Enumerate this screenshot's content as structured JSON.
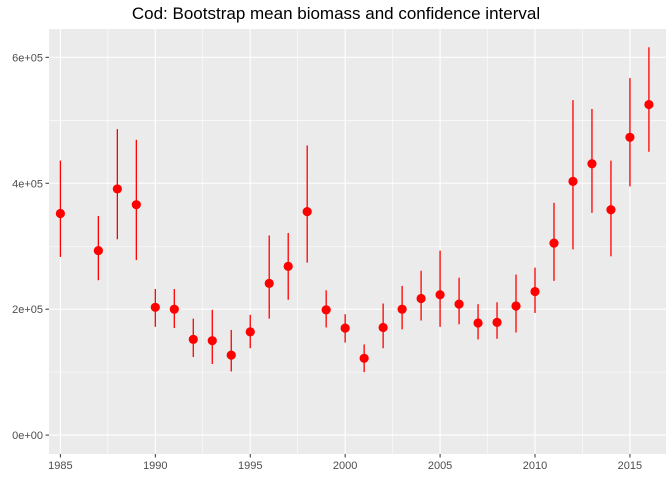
{
  "chart_data": {
    "type": "scatter",
    "title": "Cod: Bootstrap mean biomass and confidence interval",
    "xlabel": "",
    "ylabel": "",
    "xlim": [
      1984.4,
      2016.9
    ],
    "ylim": [
      -30000,
      645000
    ],
    "x_ticks": [
      1985,
      1990,
      1995,
      2000,
      2005,
      2010,
      2015
    ],
    "x_tick_labels": [
      "1985",
      "1990",
      "1995",
      "2000",
      "2005",
      "2010",
      "2015"
    ],
    "y_ticks": [
      0,
      200000,
      400000,
      600000
    ],
    "y_tick_labels": [
      "0e+00",
      "2e+05",
      "4e+05",
      "6e+05"
    ],
    "grid": true,
    "background": "#ebebeb",
    "gridline_color": "#ffffff",
    "point_color": "#ff0000",
    "series": [
      {
        "x": [
          1985,
          1987,
          1988,
          1989,
          1990,
          1991,
          1992,
          1993,
          1994,
          1995,
          1996,
          1997,
          1998,
          1999,
          2000,
          2001,
          2002,
          2003,
          2004,
          2005,
          2006,
          2007,
          2008,
          2009,
          2010,
          2011,
          2012,
          2013,
          2014,
          2015,
          2016
        ],
        "y": [
          352000,
          293000,
          391000,
          366000,
          203000,
          200000,
          152000,
          150000,
          127000,
          164000,
          241000,
          268000,
          355000,
          199000,
          170000,
          122000,
          171000,
          200000,
          217000,
          223000,
          208000,
          178000,
          179000,
          205000,
          228000,
          305000,
          403000,
          431000,
          358000,
          473000,
          525000
        ],
        "lower": [
          283000,
          246000,
          311000,
          278000,
          172000,
          170000,
          124000,
          113000,
          101000,
          138000,
          185000,
          215000,
          274000,
          171000,
          147000,
          100000,
          138000,
          168000,
          182000,
          172000,
          176000,
          152000,
          153000,
          163000,
          194000,
          245000,
          295000,
          353000,
          284000,
          395000,
          450000
        ],
        "upper": [
          436000,
          348000,
          486000,
          469000,
          232000,
          232000,
          185000,
          199000,
          167000,
          191000,
          317000,
          321000,
          460000,
          230000,
          192000,
          144000,
          209000,
          237000,
          261000,
          293000,
          250000,
          208000,
          211000,
          255000,
          266000,
          369000,
          532000,
          518000,
          436000,
          567000,
          616000
        ]
      }
    ]
  }
}
